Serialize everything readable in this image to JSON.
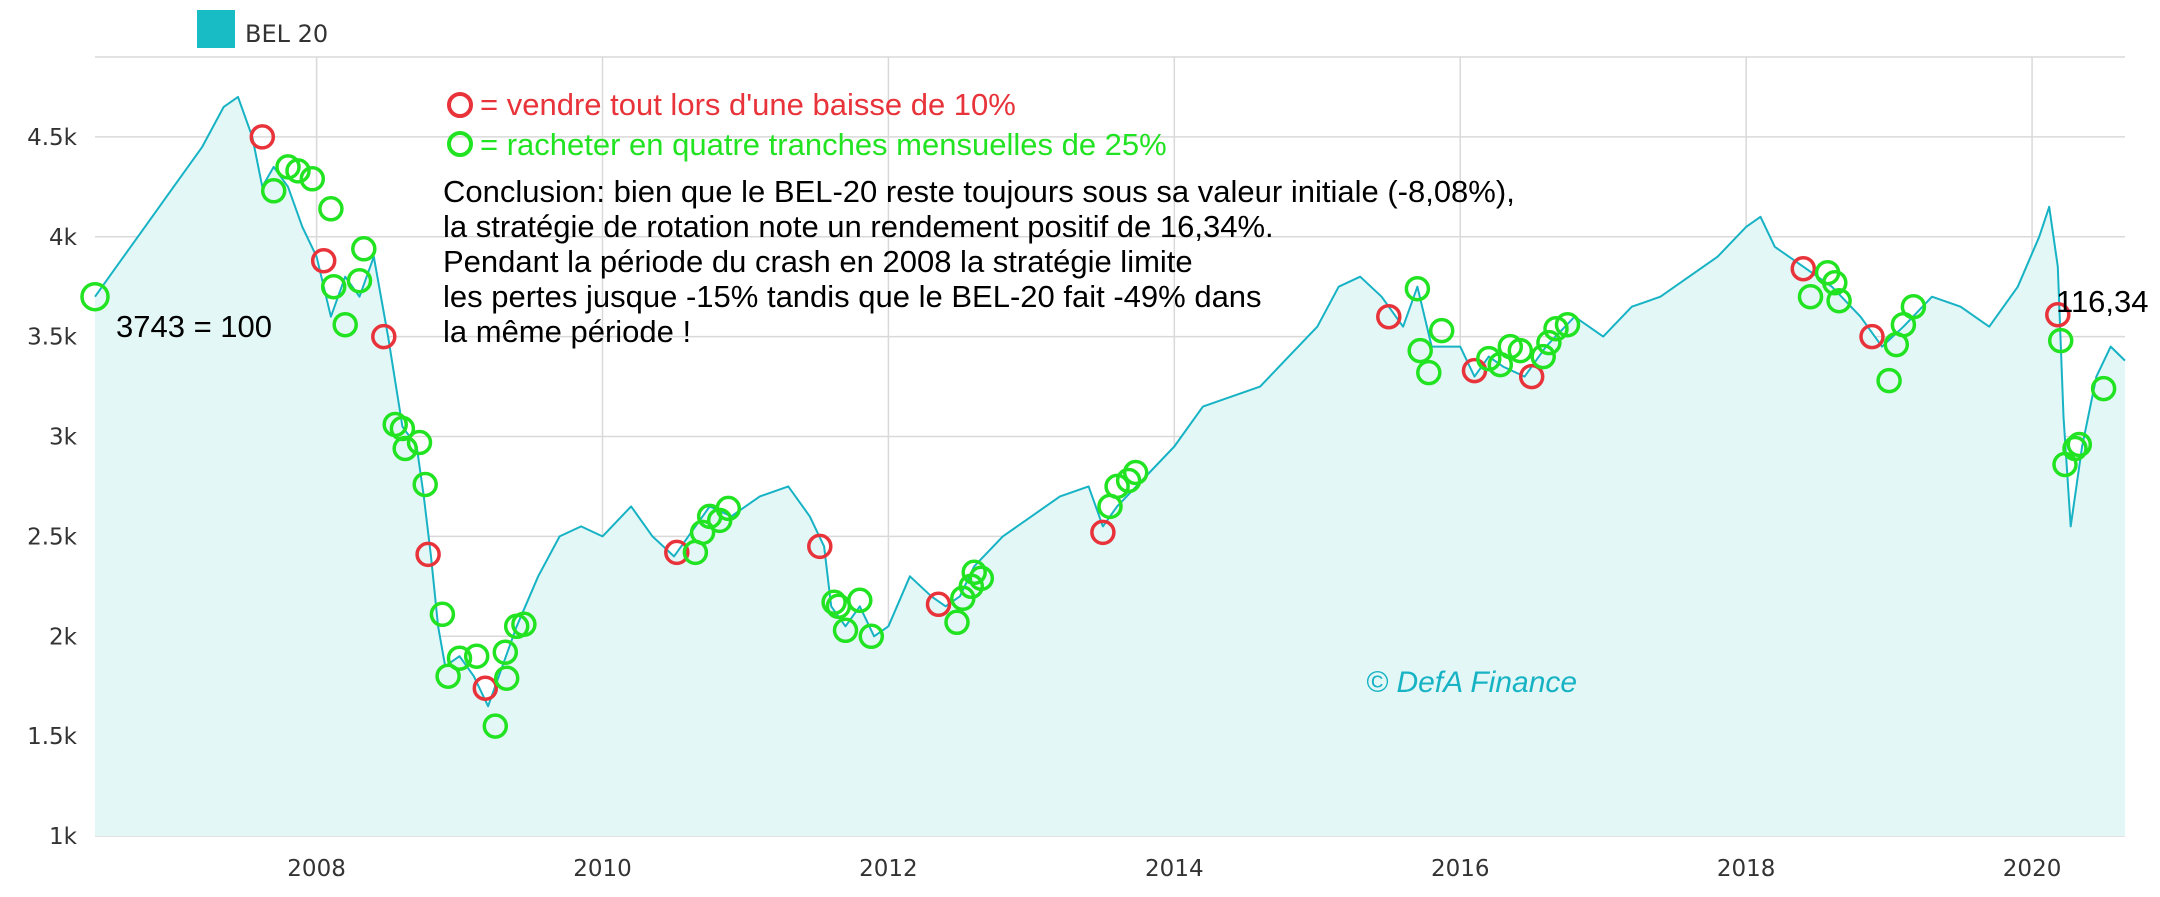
{
  "chart_data": {
    "type": "line",
    "legend": {
      "label": "BEL 20",
      "color": "#17bcc4",
      "placement": "top-left"
    },
    "xlim": [
      2006.45,
      2020.65
    ],
    "ylim": [
      1000,
      4900
    ],
    "x_ticks": [
      2008,
      2010,
      2012,
      2014,
      2016,
      2018,
      2020
    ],
    "x_tick_labels": [
      "2008",
      "2010",
      "2012",
      "2014",
      "2016",
      "2018",
      "2020"
    ],
    "y_ticks": [
      1000,
      1500,
      2000,
      2500,
      3000,
      3500,
      4000,
      4500
    ],
    "y_tick_labels": [
      "1k",
      "1.5k",
      "2k",
      "2.5k",
      "3k",
      "3.5k",
      "4k",
      "4.5k"
    ],
    "grid": true,
    "line_color": "#17b3c4",
    "fill_color": "#e3f7f7",
    "series": [
      {
        "name": "BEL 20",
        "x": [
          2006.45,
          2006.6,
          2006.8,
          2007.0,
          2007.2,
          2007.35,
          2007.45,
          2007.55,
          2007.62,
          2007.7,
          2007.8,
          2007.9,
          2008.0,
          2008.1,
          2008.2,
          2008.3,
          2008.4,
          2008.5,
          2008.6,
          2008.7,
          2008.75,
          2008.8,
          2008.85,
          2008.9,
          2009.0,
          2009.1,
          2009.2,
          2009.3,
          2009.4,
          2009.55,
          2009.7,
          2009.85,
          2010.0,
          2010.2,
          2010.35,
          2010.5,
          2010.6,
          2010.75,
          2010.9,
          2011.1,
          2011.3,
          2011.45,
          2011.55,
          2011.6,
          2011.7,
          2011.8,
          2011.9,
          2012.0,
          2012.15,
          2012.3,
          2012.4,
          2012.5,
          2012.6,
          2012.8,
          2013.0,
          2013.2,
          2013.4,
          2013.5,
          2013.6,
          2013.8,
          2014.0,
          2014.2,
          2014.4,
          2014.6,
          2014.8,
          2015.0,
          2015.15,
          2015.3,
          2015.45,
          2015.6,
          2015.7,
          2015.8,
          2016.0,
          2016.1,
          2016.2,
          2016.3,
          2016.45,
          2016.6,
          2016.8,
          2017.0,
          2017.2,
          2017.4,
          2017.6,
          2017.8,
          2018.0,
          2018.1,
          2018.2,
          2018.4,
          2018.6,
          2018.8,
          2018.95,
          2019.1,
          2019.3,
          2019.5,
          2019.7,
          2019.9,
          2020.05,
          2020.12,
          2020.18,
          2020.22,
          2020.27,
          2020.35,
          2020.45,
          2020.55,
          2020.65
        ],
        "y": [
          3700,
          3850,
          4050,
          4250,
          4450,
          4650,
          4700,
          4500,
          4250,
          4350,
          4250,
          4050,
          3900,
          3600,
          3800,
          3700,
          3900,
          3500,
          3050,
          2950,
          2700,
          2400,
          2050,
          1850,
          1900,
          1800,
          1650,
          1850,
          2050,
          2300,
          2500,
          2550,
          2500,
          2650,
          2500,
          2400,
          2500,
          2650,
          2600,
          2700,
          2750,
          2600,
          2450,
          2150,
          2050,
          2150,
          2000,
          2050,
          2300,
          2200,
          2150,
          2200,
          2350,
          2500,
          2600,
          2700,
          2750,
          2550,
          2650,
          2800,
          2950,
          3150,
          3200,
          3250,
          3400,
          3550,
          3750,
          3800,
          3700,
          3550,
          3750,
          3450,
          3450,
          3300,
          3400,
          3350,
          3300,
          3450,
          3600,
          3500,
          3650,
          3700,
          3800,
          3900,
          4050,
          4100,
          3950,
          3850,
          3750,
          3600,
          3450,
          3550,
          3700,
          3650,
          3550,
          3750,
          4000,
          4150,
          3850,
          3100,
          2550,
          2950,
          3300,
          3450,
          3380
        ]
      }
    ],
    "sell_signals": {
      "color": "#e8333a",
      "x": [
        2007.62,
        2008.05,
        2008.47,
        2008.78,
        2009.18,
        2010.52,
        2011.52,
        2012.35,
        2013.5,
        2015.5,
        2016.1,
        2016.5,
        2018.4,
        2018.88,
        2020.18
      ],
      "y": [
        4500,
        3880,
        3500,
        2410,
        1740,
        2420,
        2450,
        2160,
        2520,
        3600,
        3330,
        3300,
        3840,
        3500,
        3610
      ]
    },
    "buy_signals": {
      "color": "#22e322",
      "x": [
        2007.7,
        2007.8,
        2007.87,
        2007.97,
        2008.1,
        2008.12,
        2008.2,
        2008.3,
        2008.33,
        2008.55,
        2008.6,
        2008.62,
        2008.72,
        2008.76,
        2008.88,
        2008.92,
        2009.0,
        2009.12,
        2009.25,
        2009.32,
        2009.33,
        2009.4,
        2009.45,
        2010.65,
        2010.7,
        2010.75,
        2010.82,
        2010.88,
        2011.62,
        2011.65,
        2011.7,
        2011.8,
        2011.88,
        2012.48,
        2012.52,
        2012.58,
        2012.6,
        2012.65,
        2013.55,
        2013.6,
        2013.68,
        2013.73,
        2015.7,
        2015.72,
        2015.78,
        2015.87,
        2016.2,
        2016.28,
        2016.35,
        2016.42,
        2016.58,
        2016.62,
        2016.67,
        2016.75,
        2018.45,
        2018.57,
        2018.62,
        2018.65,
        2019.0,
        2019.05,
        2019.1,
        2019.17,
        2020.2,
        2020.23,
        2020.3,
        2020.33,
        2020.5
      ],
      "y": [
        4230,
        4350,
        4330,
        4290,
        4140,
        3750,
        3560,
        3780,
        3940,
        3060,
        3040,
        2940,
        2970,
        2760,
        2110,
        1800,
        1890,
        1900,
        1550,
        1920,
        1790,
        2050,
        2060,
        2420,
        2520,
        2600,
        2580,
        2640,
        2170,
        2150,
        2030,
        2180,
        2000,
        2070,
        2190,
        2250,
        2320,
        2290,
        2650,
        2750,
        2780,
        2820,
        3740,
        3430,
        3320,
        3530,
        3390,
        3360,
        3450,
        3430,
        3400,
        3470,
        3540,
        3560,
        3700,
        3820,
        3770,
        3680,
        3280,
        3460,
        3560,
        3650,
        3480,
        2860,
        2940,
        2960,
        3240
      ]
    },
    "annotations": {
      "sell_legend": "= vendre tout lors d'une baisse de 10%",
      "buy_legend": "= racheter en quatre tranches mensuelles de 25%",
      "conclusion_lines": [
        "Conclusion: bien que le BEL-20 reste toujours sous sa valeur initiale (-8,08%),",
        "la stratégie de rotation note un rendement positif de 16,34%.",
        "Pendant la période du crash en 2008 la stratégie limite",
        "les pertes jusque -15% tandis que le BEL-20 fait -49% dans",
        "la même période !"
      ],
      "start_label": "3743 = 100",
      "end_label": "116,34",
      "watermark": "© DefA Finance"
    }
  }
}
